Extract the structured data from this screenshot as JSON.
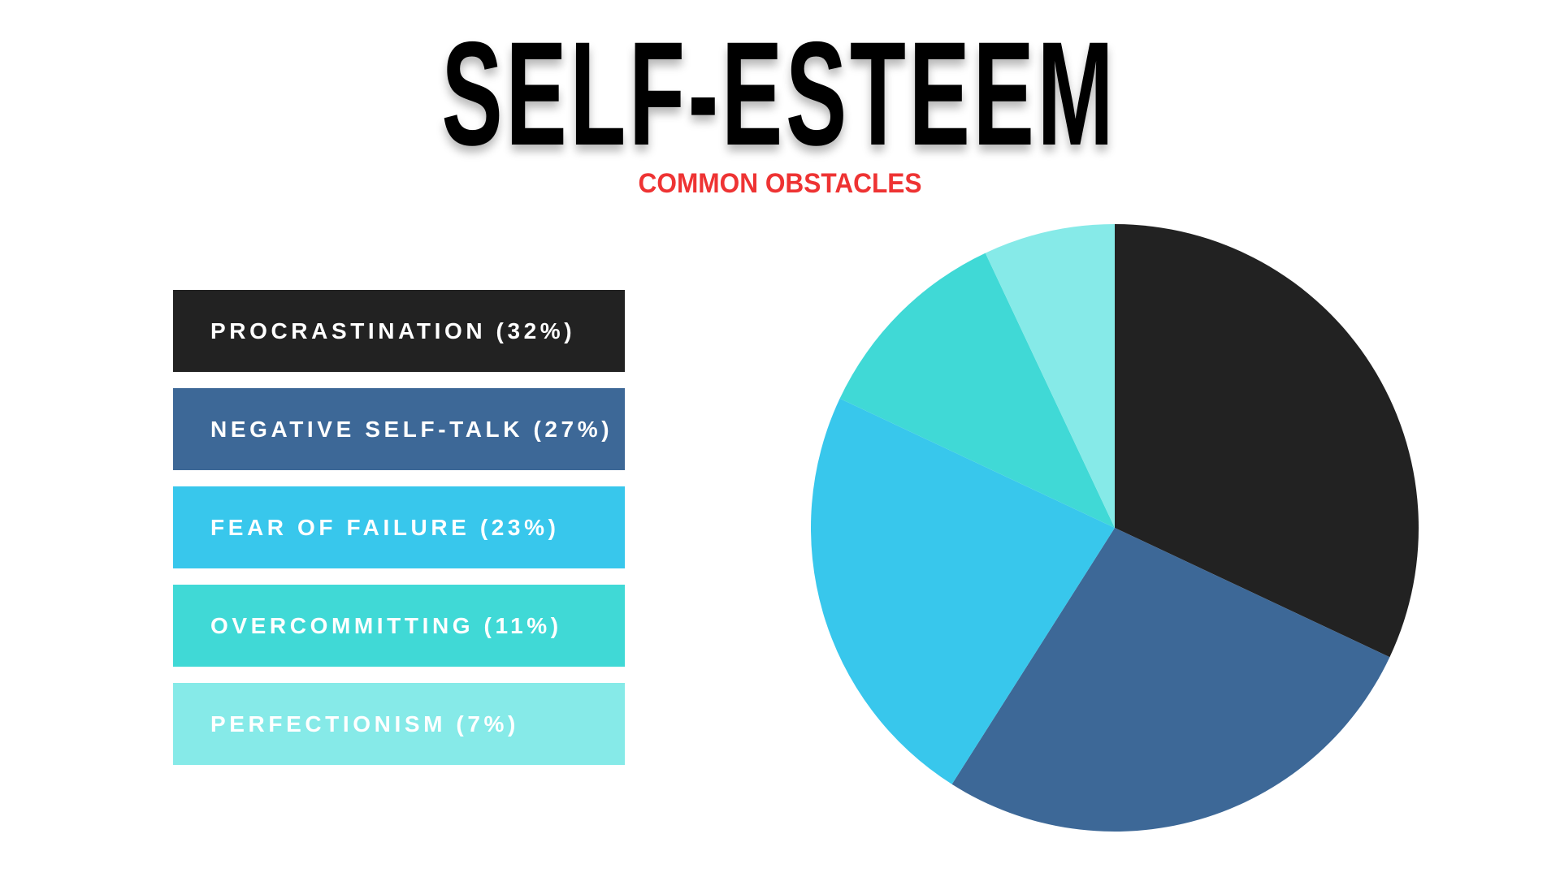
{
  "header": {
    "title": "SELF-ESTEEM",
    "subtitle": "COMMON OBSTACLES",
    "subtitle_color": "#ee3333"
  },
  "legend": {
    "items": [
      {
        "label": "PROCRASTINATION (32%)",
        "color": "#222222"
      },
      {
        "label": "NEGATIVE SELF-TALK (27%)",
        "color": "#3d6897"
      },
      {
        "label": "FEAR OF FAILURE (23%)",
        "color": "#38c7ec"
      },
      {
        "label": "OVERCOMMITTING (11%)",
        "color": "#40d9d6"
      },
      {
        "label": "PERFECTIONISM (7%)",
        "color": "#86eae8"
      }
    ]
  },
  "chart_data": {
    "type": "pie",
    "title": "SELF-ESTEEM",
    "subtitle": "COMMON OBSTACLES",
    "categories": [
      "Procrastination",
      "Negative Self-Talk",
      "Fear of Failure",
      "Overcommitting",
      "Perfectionism"
    ],
    "values": [
      32,
      27,
      23,
      11,
      7
    ],
    "unit": "%",
    "colors": [
      "#222222",
      "#3d6897",
      "#38c7ec",
      "#40d9d6",
      "#86eae8"
    ],
    "start_angle": "12 o'clock",
    "direction": "clockwise",
    "legend_position": "left",
    "grid": false
  }
}
